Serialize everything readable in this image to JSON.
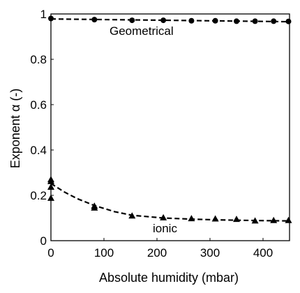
{
  "chart_data": {
    "type": "line",
    "xlabel": "Absolute humidity (mbar)",
    "ylabel": "Exponent α (-)",
    "xlim": [
      0,
      450
    ],
    "ylim": [
      0,
      1
    ],
    "xticks": [
      0,
      100,
      200,
      300,
      400
    ],
    "yticks": [
      0,
      0.2,
      0.4,
      0.6,
      0.8,
      1
    ],
    "xtick_labels": [
      "0",
      "100",
      "200",
      "300",
      "400"
    ],
    "ytick_labels": [
      "0",
      "0.2",
      "0.4",
      "0.6",
      "0.8",
      "1"
    ],
    "grid": false,
    "legend": "none",
    "colors": {
      "series": "#000000",
      "frame": "#000000"
    },
    "series": [
      {
        "annotation": "Geometrical",
        "marker": "circle",
        "line_style": "dashed",
        "points": [
          {
            "x": 0,
            "y": 0.98
          },
          {
            "x": 82,
            "y": 0.975
          },
          {
            "x": 153,
            "y": 0.972
          },
          {
            "x": 212,
            "y": 0.972
          },
          {
            "x": 265,
            "y": 0.97
          },
          {
            "x": 310,
            "y": 0.97
          },
          {
            "x": 350,
            "y": 0.968
          },
          {
            "x": 385,
            "y": 0.968
          },
          {
            "x": 420,
            "y": 0.968
          },
          {
            "x": 448,
            "y": 0.967
          }
        ],
        "fit": [
          {
            "x": 0,
            "y": 0.978
          },
          {
            "x": 450,
            "y": 0.966
          }
        ]
      },
      {
        "annotation": "ionic",
        "marker": "triangle",
        "line_style": "dashed",
        "points": [
          {
            "x": 0,
            "y": 0.27
          },
          {
            "x": 0,
            "y": 0.262
          },
          {
            "x": 0,
            "y": 0.237
          },
          {
            "x": 0,
            "y": 0.188
          },
          {
            "x": 82,
            "y": 0.153
          },
          {
            "x": 82,
            "y": 0.145
          },
          {
            "x": 153,
            "y": 0.11
          },
          {
            "x": 212,
            "y": 0.102
          },
          {
            "x": 265,
            "y": 0.098
          },
          {
            "x": 310,
            "y": 0.097
          },
          {
            "x": 350,
            "y": 0.095
          },
          {
            "x": 385,
            "y": 0.088
          },
          {
            "x": 420,
            "y": 0.09
          },
          {
            "x": 448,
            "y": 0.09
          }
        ],
        "fit": [
          {
            "x": 0,
            "y": 0.252
          },
          {
            "x": 25,
            "y": 0.215
          },
          {
            "x": 50,
            "y": 0.185
          },
          {
            "x": 82,
            "y": 0.155
          },
          {
            "x": 120,
            "y": 0.128
          },
          {
            "x": 153,
            "y": 0.112
          },
          {
            "x": 212,
            "y": 0.1
          },
          {
            "x": 265,
            "y": 0.095
          },
          {
            "x": 310,
            "y": 0.092
          },
          {
            "x": 385,
            "y": 0.089
          },
          {
            "x": 450,
            "y": 0.087
          }
        ]
      }
    ]
  }
}
